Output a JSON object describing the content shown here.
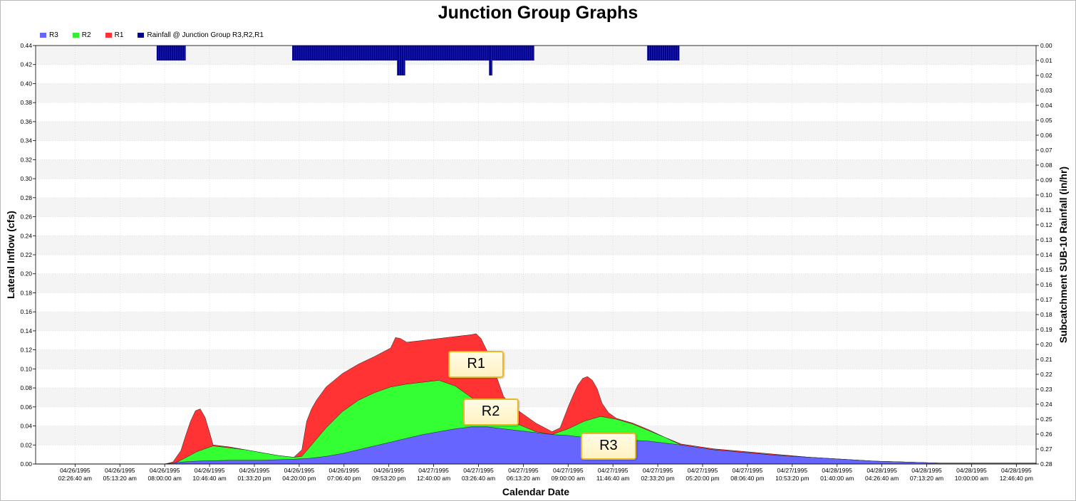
{
  "chart_data": {
    "type": "area",
    "title": "Junction Group Graphs",
    "xlabel": "Calendar Date",
    "ylabel": "Lateral Inflow (cfs)",
    "y2label": "Subcatchment SUB-10 Rainfall (in/hr)",
    "ylim": [
      0,
      0.44
    ],
    "y2lim": [
      0,
      0.28
    ],
    "y2_inverted": true,
    "yticks": [
      "0.00",
      "0.02",
      "0.04",
      "0.06",
      "0.08",
      "0.10",
      "0.12",
      "0.14",
      "0.16",
      "0.18",
      "0.20",
      "0.22",
      "0.24",
      "0.26",
      "0.28",
      "0.30",
      "0.32",
      "0.34",
      "0.36",
      "0.38",
      "0.40",
      "0.42",
      "0.44"
    ],
    "y2ticks": [
      "0.00",
      "0.01",
      "0.02",
      "0.03",
      "0.04",
      "0.05",
      "0.06",
      "0.07",
      "0.08",
      "0.09",
      "0.10",
      "0.11",
      "0.12",
      "0.13",
      "0.14",
      "0.15",
      "0.16",
      "0.17",
      "0.18",
      "0.19",
      "0.20",
      "0.21",
      "0.22",
      "0.23",
      "0.24",
      "0.25",
      "0.26",
      "0.27",
      "0.28"
    ],
    "xlim": [
      "04/26/1995 00:00",
      "04/28/1995 14:00"
    ],
    "xtick_dates": [
      "04/26/1995",
      "04/26/1995",
      "04/26/1995",
      "04/26/1995",
      "04/26/1995",
      "04/26/1995",
      "04/26/1995",
      "04/26/1995",
      "04/27/1995",
      "04/27/1995",
      "04/27/1995",
      "04/27/1995",
      "04/27/1995",
      "04/27/1995",
      "04/27/1995",
      "04/27/1995",
      "04/27/1995",
      "04/28/1995",
      "04/28/1995",
      "04/28/1995",
      "04/28/1995",
      "04/28/1995"
    ],
    "xtick_times": [
      "02:26:40 am",
      "05:13:20 am",
      "08:00:00 am",
      "10:46:40 am",
      "01:33:20 pm",
      "04:20:00 pm",
      "07:06:40 pm",
      "09:53:20 pm",
      "12:40:00 am",
      "03:26:40 am",
      "06:13:20 am",
      "09:00:00 am",
      "11:46:40 am",
      "02:33:20 pm",
      "05:20:00 pm",
      "08:06:40 pm",
      "10:53:20 pm",
      "01:40:00 am",
      "04:26:40 am",
      "07:13:20 am",
      "10:00:00 am",
      "12:46:40 pm"
    ],
    "grid": true,
    "legend_position": "top-left",
    "series": [
      {
        "name": "R3",
        "color": "#6666ff",
        "x": [
          0,
          7.9,
          8.5,
          9,
          10,
          12,
          14,
          16,
          17,
          18,
          19,
          20,
          21,
          22,
          23,
          24,
          25,
          26,
          27,
          28,
          29,
          30,
          31,
          32,
          33,
          34,
          35,
          36,
          37,
          38,
          40,
          42,
          44,
          46,
          48,
          50,
          52,
          54,
          56,
          58,
          60,
          62
        ],
        "values": [
          0,
          0,
          0.001,
          0.002,
          0.003,
          0.004,
          0.004,
          0.005,
          0.006,
          0.008,
          0.011,
          0.015,
          0.019,
          0.023,
          0.027,
          0.031,
          0.034,
          0.037,
          0.039,
          0.039,
          0.037,
          0.035,
          0.033,
          0.031,
          0.03,
          0.028,
          0.027,
          0.026,
          0.025,
          0.024,
          0.02,
          0.015,
          0.012,
          0.009,
          0.007,
          0.005,
          0.003,
          0.002,
          0.001,
          0.001,
          0.001,
          0.001
        ]
      },
      {
        "name": "R2",
        "color": "#33ff33",
        "x": [
          0,
          8.5,
          9,
          10,
          11,
          12,
          13,
          14,
          15,
          16,
          16.5,
          17,
          18,
          19,
          20,
          21,
          22,
          23,
          24,
          25,
          26,
          27,
          28,
          29,
          30,
          31,
          32,
          33,
          34,
          35,
          36,
          37,
          38,
          39,
          40,
          41,
          42,
          43,
          44,
          46,
          48,
          50,
          52,
          54,
          56,
          58,
          60,
          62
        ],
        "values": [
          0,
          0,
          0.004,
          0.013,
          0.019,
          0.017,
          0.015,
          0.012,
          0.009,
          0.007,
          0.008,
          0.018,
          0.038,
          0.055,
          0.067,
          0.075,
          0.081,
          0.084,
          0.086,
          0.088,
          0.082,
          0.07,
          0.057,
          0.048,
          0.041,
          0.034,
          0.031,
          0.037,
          0.045,
          0.05,
          0.047,
          0.042,
          0.035,
          0.028,
          0.02,
          0.017,
          0.015,
          0.013,
          0.012,
          0.009,
          0.007,
          0.005,
          0.003,
          0.002,
          0.001,
          0.001,
          0.001,
          0.001
        ]
      },
      {
        "name": "R1",
        "color": "#ff3333",
        "x": [
          0,
          8.0,
          8.5,
          9.0,
          9.3,
          9.6,
          9.9,
          10.2,
          10.5,
          10.8,
          11,
          12,
          13,
          14,
          15,
          16,
          16.5,
          16.8,
          17.1,
          17.4,
          17.7,
          18,
          18.5,
          19,
          20,
          21,
          22,
          22.3,
          22.6,
          23,
          24,
          25,
          26,
          27,
          27.3,
          27.6,
          28,
          28.3,
          28.6,
          29,
          29.5,
          30,
          31,
          32,
          32.5,
          33,
          33.3,
          33.6,
          33.9,
          34.2,
          34.5,
          34.8,
          35.1,
          35.5,
          36,
          37,
          38,
          39,
          40,
          42,
          44,
          46,
          48,
          50,
          52,
          54,
          56,
          58,
          60,
          62
        ],
        "values": [
          0,
          0,
          0.002,
          0.014,
          0.03,
          0.045,
          0.056,
          0.058,
          0.049,
          0.032,
          0.02,
          0.018,
          0.015,
          0.012,
          0.009,
          0.007,
          0.015,
          0.045,
          0.058,
          0.067,
          0.074,
          0.081,
          0.088,
          0.095,
          0.105,
          0.113,
          0.122,
          0.133,
          0.132,
          0.128,
          0.13,
          0.132,
          0.134,
          0.136,
          0.137,
          0.132,
          0.118,
          0.098,
          0.09,
          0.071,
          0.062,
          0.055,
          0.043,
          0.034,
          0.038,
          0.06,
          0.072,
          0.083,
          0.09,
          0.092,
          0.088,
          0.079,
          0.064,
          0.054,
          0.048,
          0.043,
          0.036,
          0.028,
          0.021,
          0.016,
          0.013,
          0.01,
          0.007,
          0.005,
          0.003,
          0.002,
          0.001,
          0.001,
          0.001,
          0.001
        ]
      },
      {
        "name": "Rainfall @ Junction Group R3,R2,R1",
        "color": "#00008b",
        "axis": "right",
        "type": "bar",
        "bars": [
          {
            "start": 7.5,
            "end": 9.3,
            "value": 0.01
          },
          {
            "start": 15.9,
            "end": 30.9,
            "value": 0.01
          },
          {
            "start": 22.4,
            "end": 22.9,
            "value": 0.02
          },
          {
            "start": 28.1,
            "end": 28.3,
            "value": 0.02
          },
          {
            "start": 37.9,
            "end": 39.9,
            "value": 0.01
          }
        ]
      }
    ],
    "annotations": [
      {
        "text": "R1",
        "x": 27.3,
        "y": 0.105
      },
      {
        "text": "R2",
        "x": 28.2,
        "y": 0.055
      },
      {
        "text": "R3",
        "x": 35.5,
        "y": 0.019
      }
    ]
  }
}
